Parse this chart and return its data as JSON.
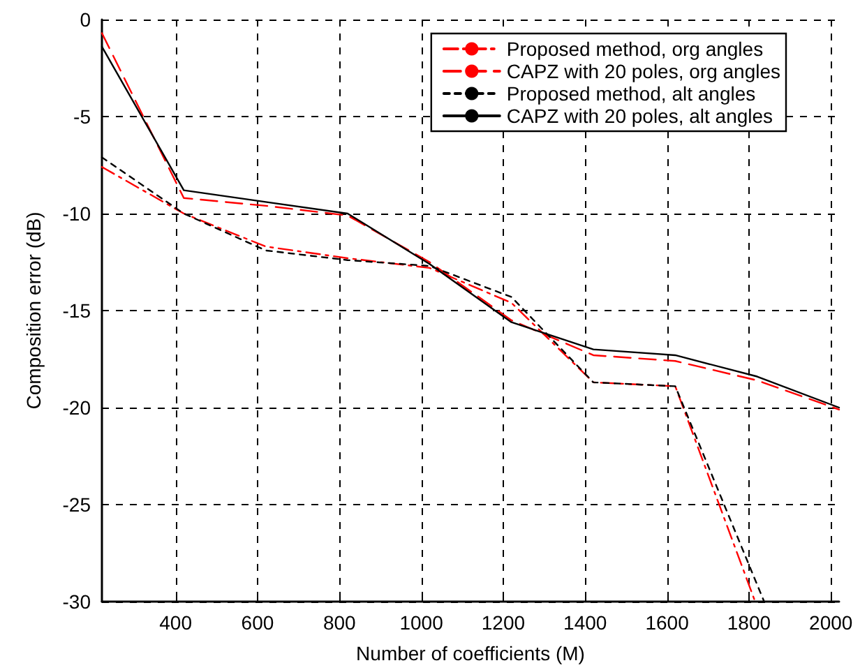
{
  "chart_data": {
    "type": "line",
    "xlabel": "Number of coefficients (M)",
    "ylabel": "Composition error (dB)",
    "xlim": [
      220,
      2020
    ],
    "xticks": [
      400,
      600,
      800,
      1000,
      1200,
      1400,
      1600,
      1800,
      2000
    ],
    "ylim": [
      -30,
      0
    ],
    "yticks": [
      -30,
      -25,
      -20,
      -15,
      -10,
      -5,
      0
    ],
    "grid": true,
    "legend": "top right",
    "marker": "none",
    "series": [
      {
        "name": "Proposed method, org angles",
        "color": "#ff0000",
        "line_style": "dashdot",
        "x": [
          220,
          420,
          620,
          820,
          1020,
          1220,
          1420,
          1620,
          1815
        ],
        "values": [
          -7.6,
          -10.0,
          -11.7,
          -12.3,
          -12.8,
          -14.6,
          -18.7,
          -18.9,
          -30
        ]
      },
      {
        "name": "CAPZ with 20 poles, org angles",
        "color": "#ff0000",
        "line_style": "dashed",
        "x": [
          220,
          420,
          620,
          820,
          1020,
          1220,
          1420,
          1620,
          1820,
          2020
        ],
        "values": [
          -0.7,
          -9.2,
          -9.6,
          -10.1,
          -12.5,
          -15.5,
          -17.3,
          -17.6,
          -18.6,
          -20.1
        ]
      },
      {
        "name": "Proposed method, alt angles",
        "color": "#000000",
        "line_style": "dotted",
        "x": [
          220,
          420,
          620,
          820,
          1020,
          1220,
          1420,
          1620,
          1837
        ],
        "values": [
          -7.1,
          -10.0,
          -11.9,
          -12.4,
          -12.7,
          -14.3,
          -18.7,
          -18.9,
          -30
        ]
      },
      {
        "name": "CAPZ with 20 poles, alt angles",
        "color": "#000000",
        "line_style": "solid",
        "x": [
          220,
          420,
          620,
          820,
          1020,
          1220,
          1420,
          1620,
          1820,
          2020
        ],
        "values": [
          -1.4,
          -8.8,
          -9.4,
          -10.0,
          -12.6,
          -15.6,
          -17.0,
          -17.3,
          -18.4,
          -20.0
        ]
      }
    ]
  }
}
